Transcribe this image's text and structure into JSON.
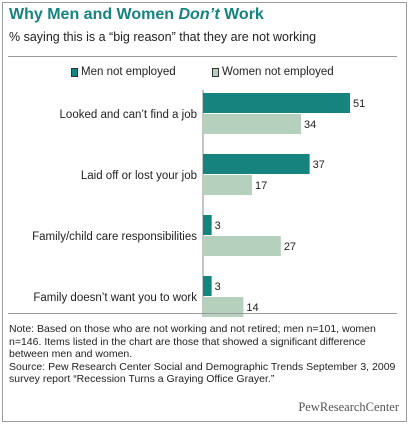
{
  "header": {
    "title_pre": "Why Men and Women ",
    "title_em": "Don’t",
    "title_post": " Work",
    "subtitle": "% saying this is a “big reason” that they are not working"
  },
  "colors": {
    "men": "#16837f",
    "women": "#b5d1be",
    "title": "#16837f"
  },
  "chart_data": {
    "type": "bar",
    "orientation": "horizontal",
    "categories": [
      "Looked and can’t find a job",
      "Laid off or lost your job",
      "Family/child care responsibilities",
      "Family doesn’t want you to work"
    ],
    "series": [
      {
        "name": "Men not employed",
        "values": [
          51,
          37,
          3,
          3
        ]
      },
      {
        "name": "Women not employed",
        "values": [
          34,
          17,
          27,
          14
        ]
      }
    ],
    "xlim": [
      0,
      51
    ],
    "data_labels": true,
    "legend_position": "top"
  },
  "footer": {
    "note": "Note: Based on those who are not working and not retired; men n=101, women n=146. Items listed in the chart are those that showed a significant difference between men and women.",
    "source": "Source: Pew Research Center Social and Demographic Trends September 3, 2009 survey report “Recession Turns a Graying Office Grayer.”",
    "brand": "PewResearchCenter"
  }
}
